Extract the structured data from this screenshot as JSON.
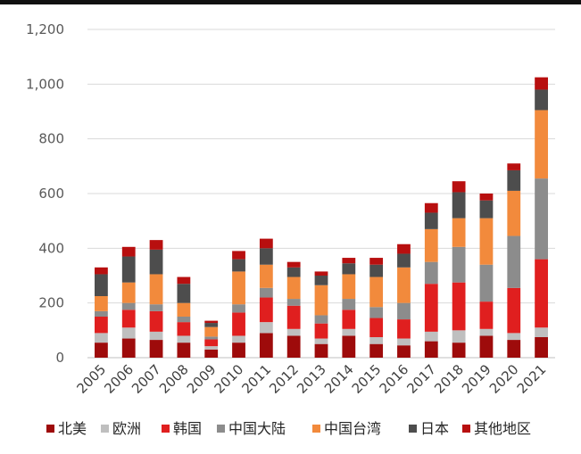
{
  "chart_data": {
    "type": "bar",
    "stacked": true,
    "categories": [
      "2005",
      "2006",
      "2007",
      "2008",
      "2009",
      "2010",
      "2011",
      "2012",
      "2013",
      "2014",
      "2015",
      "2016",
      "2017",
      "2018",
      "2019",
      "2020",
      "2021"
    ],
    "ylim": [
      0,
      1200
    ],
    "yticks": [
      0,
      200,
      400,
      600,
      800,
      1000,
      1200
    ],
    "ytick_labels": [
      "0",
      "200",
      "400",
      "600",
      "800",
      "1,000",
      "1,200"
    ],
    "grid": true,
    "legend_position": "bottom",
    "series": [
      {
        "name": "北美",
        "color": "#9e0b0b",
        "values": [
          55,
          70,
          65,
          55,
          30,
          55,
          90,
          80,
          50,
          80,
          50,
          45,
          60,
          55,
          80,
          65,
          75
        ]
      },
      {
        "name": "欧洲",
        "color": "#bfbfbf",
        "values": [
          35,
          40,
          30,
          25,
          12,
          25,
          40,
          25,
          20,
          25,
          25,
          25,
          35,
          45,
          25,
          25,
          35
        ]
      },
      {
        "name": "韩国",
        "color": "#e01f1f",
        "values": [
          60,
          65,
          75,
          50,
          25,
          85,
          90,
          85,
          55,
          70,
          70,
          70,
          175,
          175,
          100,
          165,
          250
        ]
      },
      {
        "name": "中国大陆",
        "color": "#8c8c8c",
        "values": [
          20,
          25,
          25,
          20,
          10,
          30,
          35,
          25,
          30,
          40,
          40,
          60,
          80,
          130,
          135,
          190,
          295
        ]
      },
      {
        "name": "中国台湾",
        "color": "#f28a3c",
        "values": [
          55,
          75,
          110,
          50,
          35,
          120,
          85,
          80,
          110,
          90,
          110,
          130,
          120,
          105,
          170,
          165,
          250
        ]
      },
      {
        "name": "日本",
        "color": "#4d4d4d",
        "values": [
          80,
          95,
          90,
          70,
          15,
          45,
          60,
          35,
          35,
          40,
          45,
          50,
          60,
          95,
          65,
          75,
          75
        ]
      },
      {
        "name": "其他地区",
        "color": "#b80f0f",
        "values": [
          25,
          35,
          35,
          25,
          8,
          30,
          35,
          20,
          15,
          20,
          25,
          35,
          35,
          40,
          25,
          25,
          45
        ]
      }
    ]
  }
}
